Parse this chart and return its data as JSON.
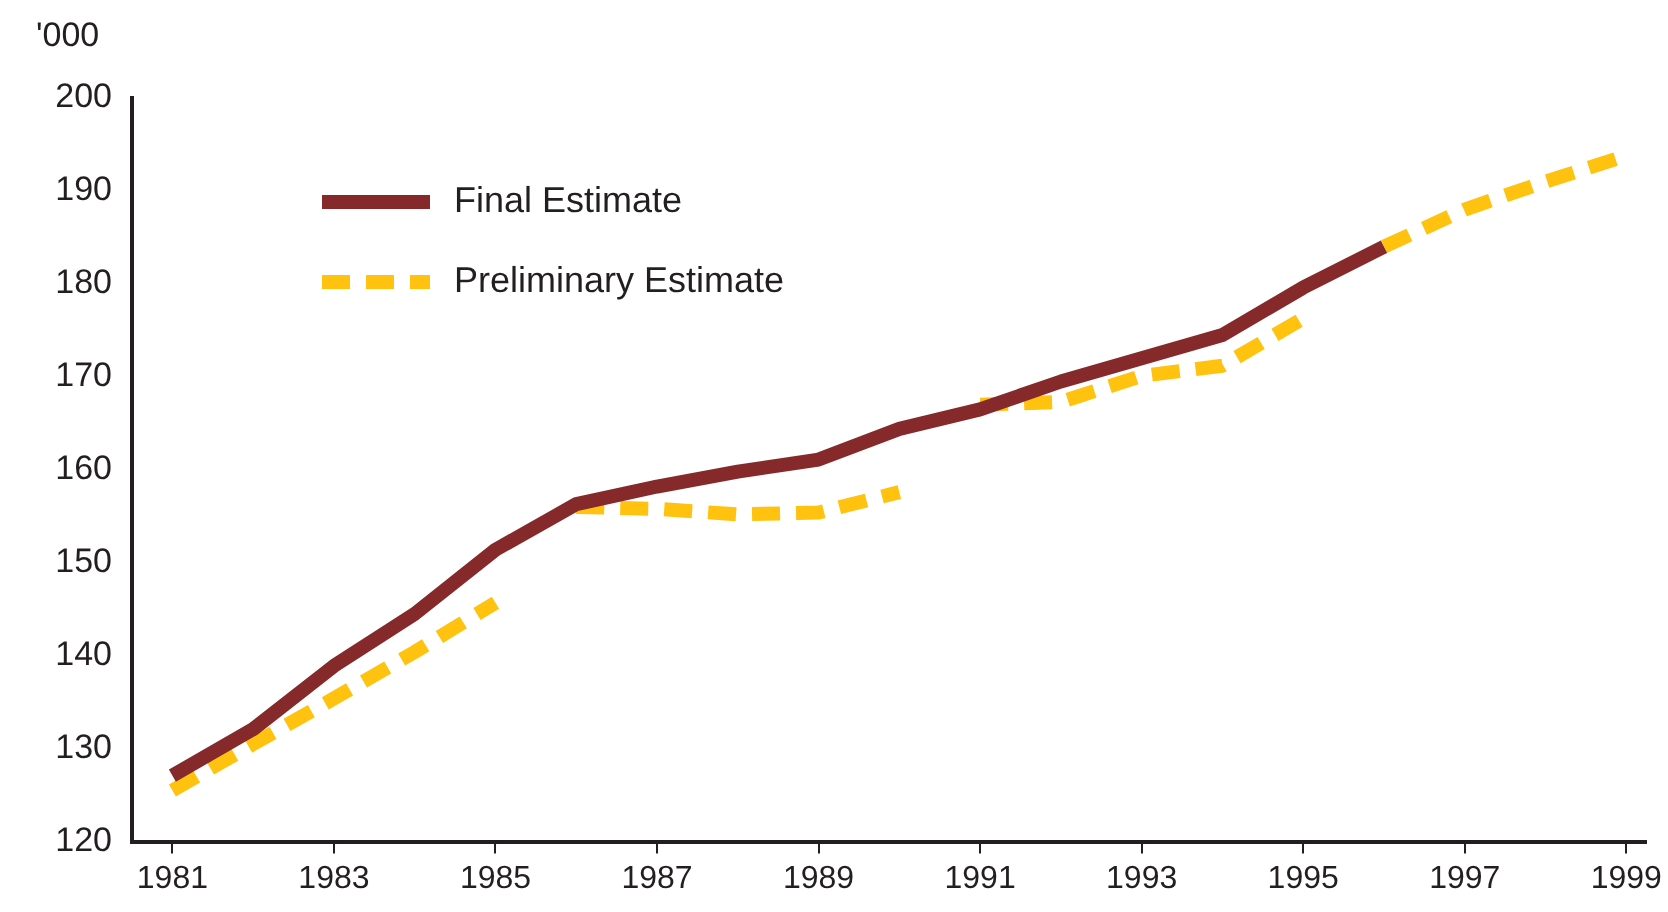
{
  "chart_data": {
    "type": "line",
    "ylabel": "'000",
    "xlim": [
      1980.5,
      1999.25
    ],
    "xticks": [
      1981,
      1983,
      1985,
      1987,
      1989,
      1991,
      1993,
      1995,
      1997,
      1999
    ],
    "ylim": [
      120,
      200
    ],
    "yticks": [
      120,
      130,
      140,
      150,
      160,
      170,
      180,
      190,
      200
    ],
    "grid": false,
    "legend": "top left",
    "marker": "none",
    "series": [
      {
        "name": "Final Estimate",
        "color": "#85292b",
        "line_style": "solid",
        "x": [
          1981,
          1982,
          1983,
          1984,
          1985,
          1986,
          1987,
          1988,
          1989,
          1990,
          1991,
          1992,
          1993,
          1994,
          1995,
          1996
        ],
        "values": [
          127.1,
          132.1,
          138.9,
          144.5,
          151.4,
          156.3,
          158.2,
          159.8,
          161.1,
          164.4,
          166.5,
          169.5,
          172,
          174.5,
          179.6,
          184
        ]
      },
      {
        "name": "Preliminary Estimate",
        "color": "#ffc20e",
        "line_style": "dashed",
        "x": [
          1981,
          1982,
          1983,
          1984,
          1985,
          1985.5,
          1986,
          1987,
          1988,
          1989,
          1990,
          1990.5,
          1991,
          1992,
          1993,
          1994,
          1995,
          1995.5,
          1996,
          1997,
          1998,
          1999
        ],
        "values": [
          125.5,
          130.5,
          135.4,
          140.4,
          145.7,
          null,
          156,
          155.8,
          155.2,
          155.4,
          157.6,
          null,
          167,
          167.3,
          170.1,
          171.2,
          176.3,
          null,
          184,
          188,
          191,
          193.8
        ]
      }
    ]
  }
}
